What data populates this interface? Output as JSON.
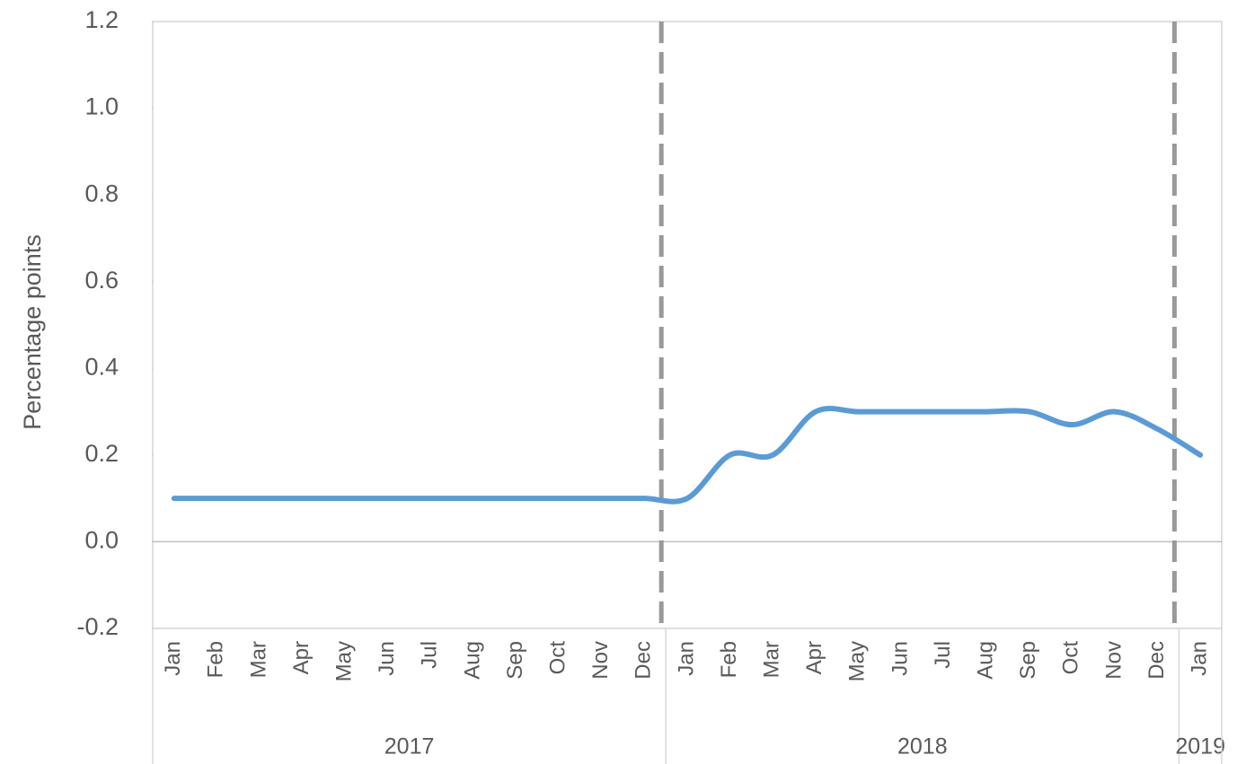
{
  "chart_data": {
    "type": "line",
    "y_label": "Percentage points",
    "categories": [
      {
        "month": "Jan",
        "year": "2017"
      },
      {
        "month": "Feb",
        "year": "2017"
      },
      {
        "month": "Mar",
        "year": "2017"
      },
      {
        "month": "Apr",
        "year": "2017"
      },
      {
        "month": "May",
        "year": "2017"
      },
      {
        "month": "Jun",
        "year": "2017"
      },
      {
        "month": "Jul",
        "year": "2017"
      },
      {
        "month": "Aug",
        "year": "2017"
      },
      {
        "month": "Sep",
        "year": "2017"
      },
      {
        "month": "Oct",
        "year": "2017"
      },
      {
        "month": "Nov",
        "year": "2017"
      },
      {
        "month": "Dec",
        "year": "2017"
      },
      {
        "month": "Jan",
        "year": "2018"
      },
      {
        "month": "Feb",
        "year": "2018"
      },
      {
        "month": "Mar",
        "year": "2018"
      },
      {
        "month": "Apr",
        "year": "2018"
      },
      {
        "month": "May",
        "year": "2018"
      },
      {
        "month": "Jun",
        "year": "2018"
      },
      {
        "month": "Jul",
        "year": "2018"
      },
      {
        "month": "Aug",
        "year": "2018"
      },
      {
        "month": "Sep",
        "year": "2018"
      },
      {
        "month": "Oct",
        "year": "2018"
      },
      {
        "month": "Nov",
        "year": "2018"
      },
      {
        "month": "Dec",
        "year": "2018"
      },
      {
        "month": "Jan",
        "year": "2019"
      }
    ],
    "series": [
      {
        "name": "Percentage points",
        "color": "#5b9bd5",
        "values": [
          0.1,
          0.1,
          0.1,
          0.1,
          0.1,
          0.1,
          0.1,
          0.1,
          0.1,
          0.1,
          0.1,
          0.1,
          0.1,
          0.2,
          0.2,
          0.3,
          0.3,
          0.3,
          0.3,
          0.3,
          0.3,
          0.27,
          0.3,
          0.26,
          0.2
        ]
      }
    ],
    "ylim": [
      -0.2,
      1.2
    ],
    "yticks": [
      -0.2,
      {
        "value": 0,
        "label": "0.0"
      },
      0.2,
      0.4,
      0.6,
      0.8,
      {
        "value": 1,
        "label": "1.0"
      },
      1.2
    ],
    "smooth": true,
    "year_dividers": "dashed"
  }
}
